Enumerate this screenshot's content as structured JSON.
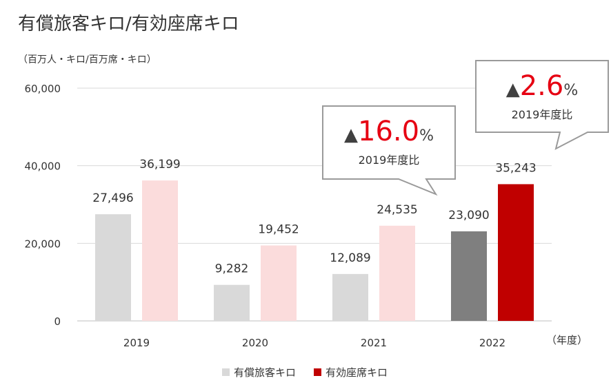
{
  "title": "有償旅客キロ/有効座席キロ",
  "unit_label": "（百万人・キロ/百万席・キロ）",
  "x_unit_label": "（年度）",
  "callouts": [
    {
      "arrow": "▲",
      "value": "16.0",
      "suffix": "%",
      "sub": "2019年度比"
    },
    {
      "arrow": "▲",
      "value": "2.6",
      "suffix": "%",
      "sub": "2019年度比"
    }
  ],
  "chart_data": {
    "type": "bar",
    "categories": [
      "2019",
      "2020",
      "2021",
      "2022"
    ],
    "series": [
      {
        "name": "有償旅客キロ",
        "values": [
          27496,
          9282,
          12089,
          23090
        ],
        "labels": [
          "27,496",
          "9,282",
          "12,089",
          "23,090"
        ]
      },
      {
        "name": "有効座席キロ",
        "values": [
          36199,
          19452,
          24535,
          35243
        ],
        "labels": [
          "36,199",
          "19,452",
          "24,535",
          "35,243"
        ]
      }
    ],
    "colors": {
      "series1_light": "#d9d9d9",
      "series1_dark": "#7f7f7f",
      "series2_light": "#fbdcdc",
      "series2_dark": "#c00000",
      "callout_red": "#e60012"
    },
    "ylim": [
      0,
      60000
    ],
    "yticks": [
      0,
      20000,
      40000,
      60000
    ],
    "ytick_labels": [
      "0",
      "20,000",
      "40,000",
      "60,000"
    ],
    "grid": true,
    "legend_position": "bottom-center"
  }
}
